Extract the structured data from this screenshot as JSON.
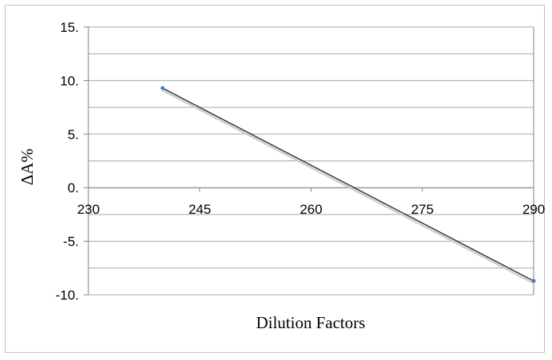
{
  "chart_data": {
    "type": "line",
    "title": "",
    "xlabel": "Dilution Factors",
    "ylabel": "ΔA%",
    "xlim": [
      230,
      290
    ],
    "ylim": [
      -10,
      15
    ],
    "x_ticks": [
      230,
      245,
      260,
      275,
      290
    ],
    "x_tick_labels": [
      "230",
      "245",
      "260",
      "275",
      "290"
    ],
    "y_ticks": [
      15,
      10,
      5,
      0,
      -5,
      -10
    ],
    "y_tick_labels": [
      "15.",
      "10.",
      "5.",
      "0.",
      "-5.",
      "-10."
    ],
    "grid": true,
    "legend": "none",
    "series": [
      {
        "x": [
          240,
          290
        ],
        "y": [
          9.3,
          -8.7
        ],
        "marker_color": "#4a7ebb",
        "line_color": "#1a1a1a"
      }
    ],
    "trendline": {
      "x": [
        240,
        290
      ],
      "y": [
        9.1,
        -8.9
      ],
      "color": "#d0d0d0"
    }
  }
}
